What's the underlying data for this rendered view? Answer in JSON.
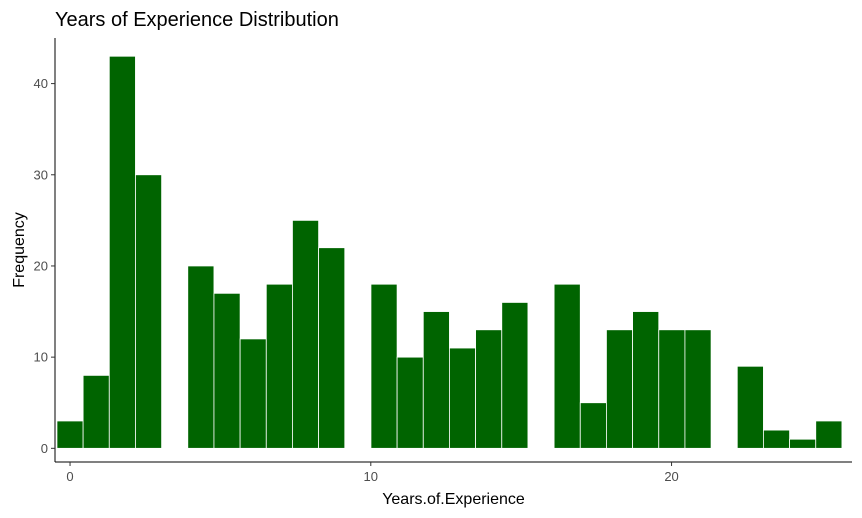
{
  "chart_data": {
    "type": "bar",
    "title": "Years of Experience Distribution",
    "xlabel": "Years.of.Experience",
    "ylabel": "Frequency",
    "bar_color": "#006400",
    "bar_outline": "#ffffff",
    "bin_width": 0.87,
    "xlim": [
      -0.5,
      26.0
    ],
    "ylim": [
      -1.5,
      45
    ],
    "xticks": [
      0,
      10,
      20
    ],
    "yticks": [
      0,
      10,
      20,
      30,
      40
    ],
    "grid": false,
    "x": [
      0,
      0.87,
      1.74,
      2.61,
      4.35,
      5.22,
      6.09,
      6.96,
      7.83,
      8.7,
      10.44,
      11.31,
      12.18,
      13.05,
      13.92,
      14.79,
      16.53,
      17.4,
      18.27,
      19.14,
      20.01,
      20.88,
      22.62,
      23.49,
      24.36,
      25.23
    ],
    "values": [
      3,
      8,
      43,
      30,
      20,
      17,
      12,
      18,
      25,
      22,
      18,
      10,
      15,
      11,
      13,
      16,
      18,
      5,
      13,
      15,
      13,
      13,
      9,
      2,
      1,
      3
    ]
  }
}
